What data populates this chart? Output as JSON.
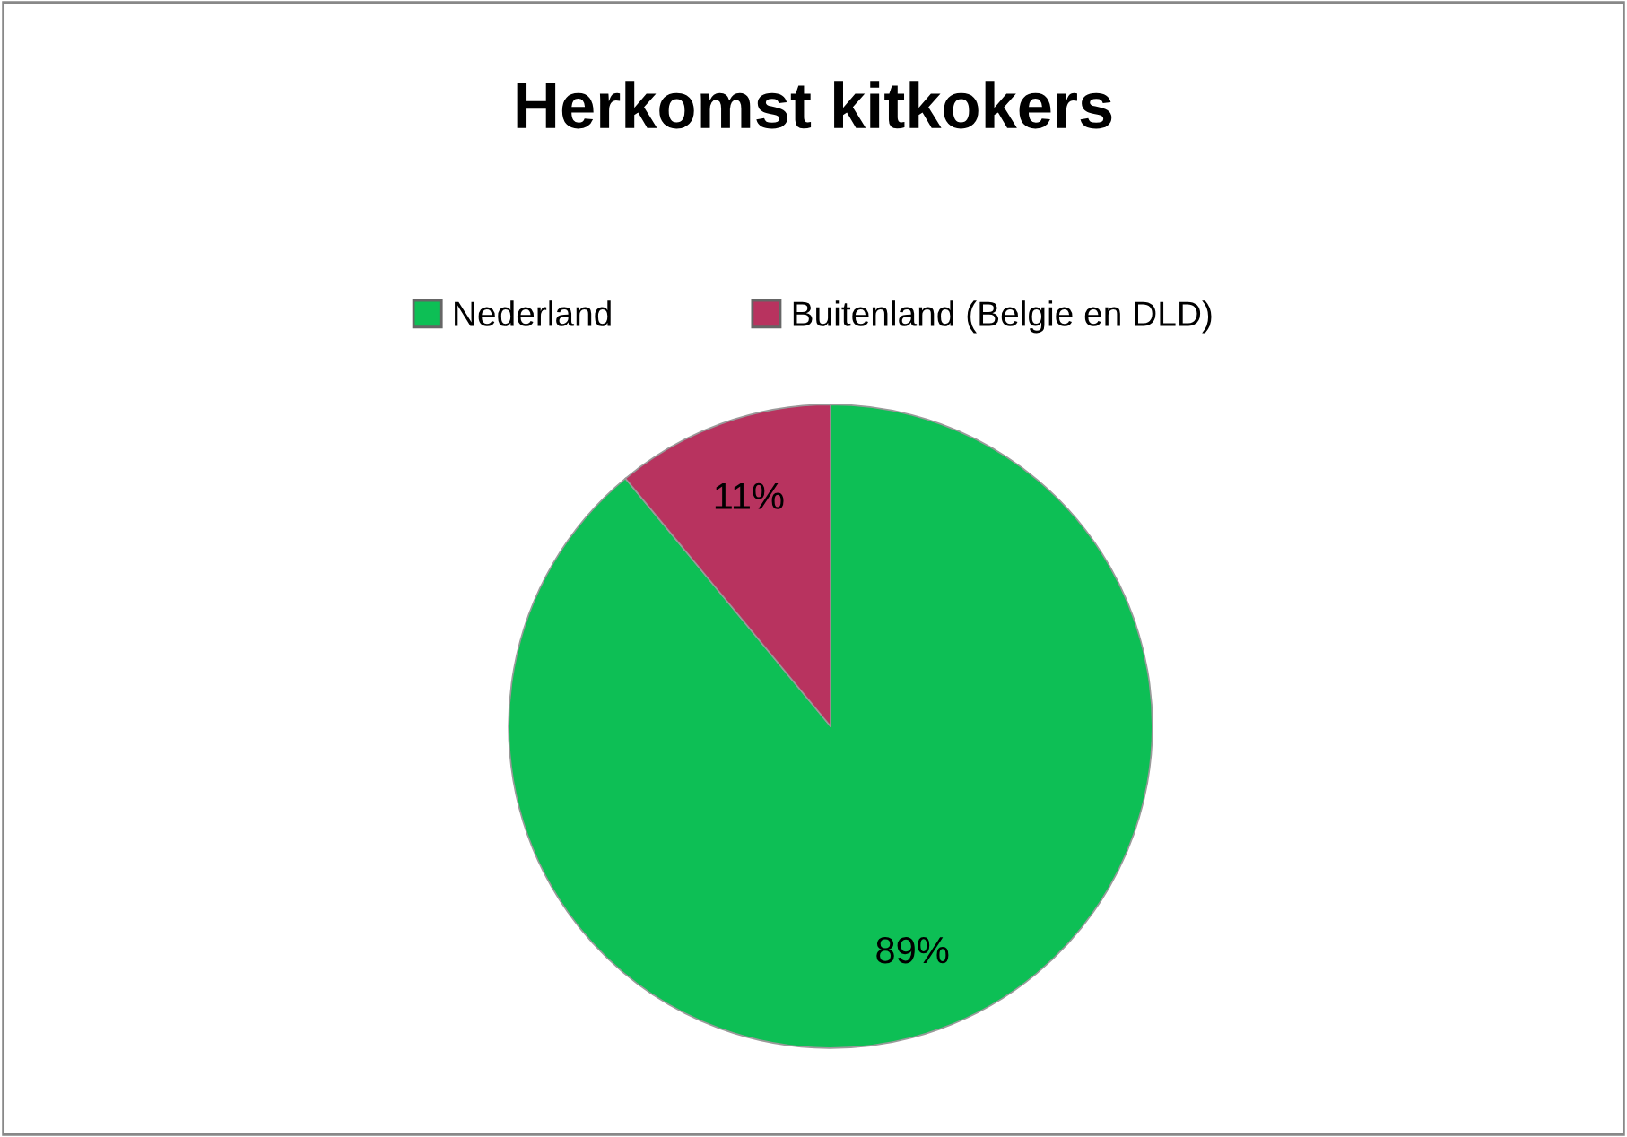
{
  "chart_data": {
    "type": "pie",
    "title": "Herkomst kitkokers",
    "categories": [
      "Nederland",
      "Buitenland (Belgie en DLD)"
    ],
    "values": [
      89,
      11
    ],
    "colors": [
      "#0dbf55",
      "#b8335f"
    ],
    "value_labels": [
      "89%",
      "11%"
    ],
    "legend": "top"
  }
}
